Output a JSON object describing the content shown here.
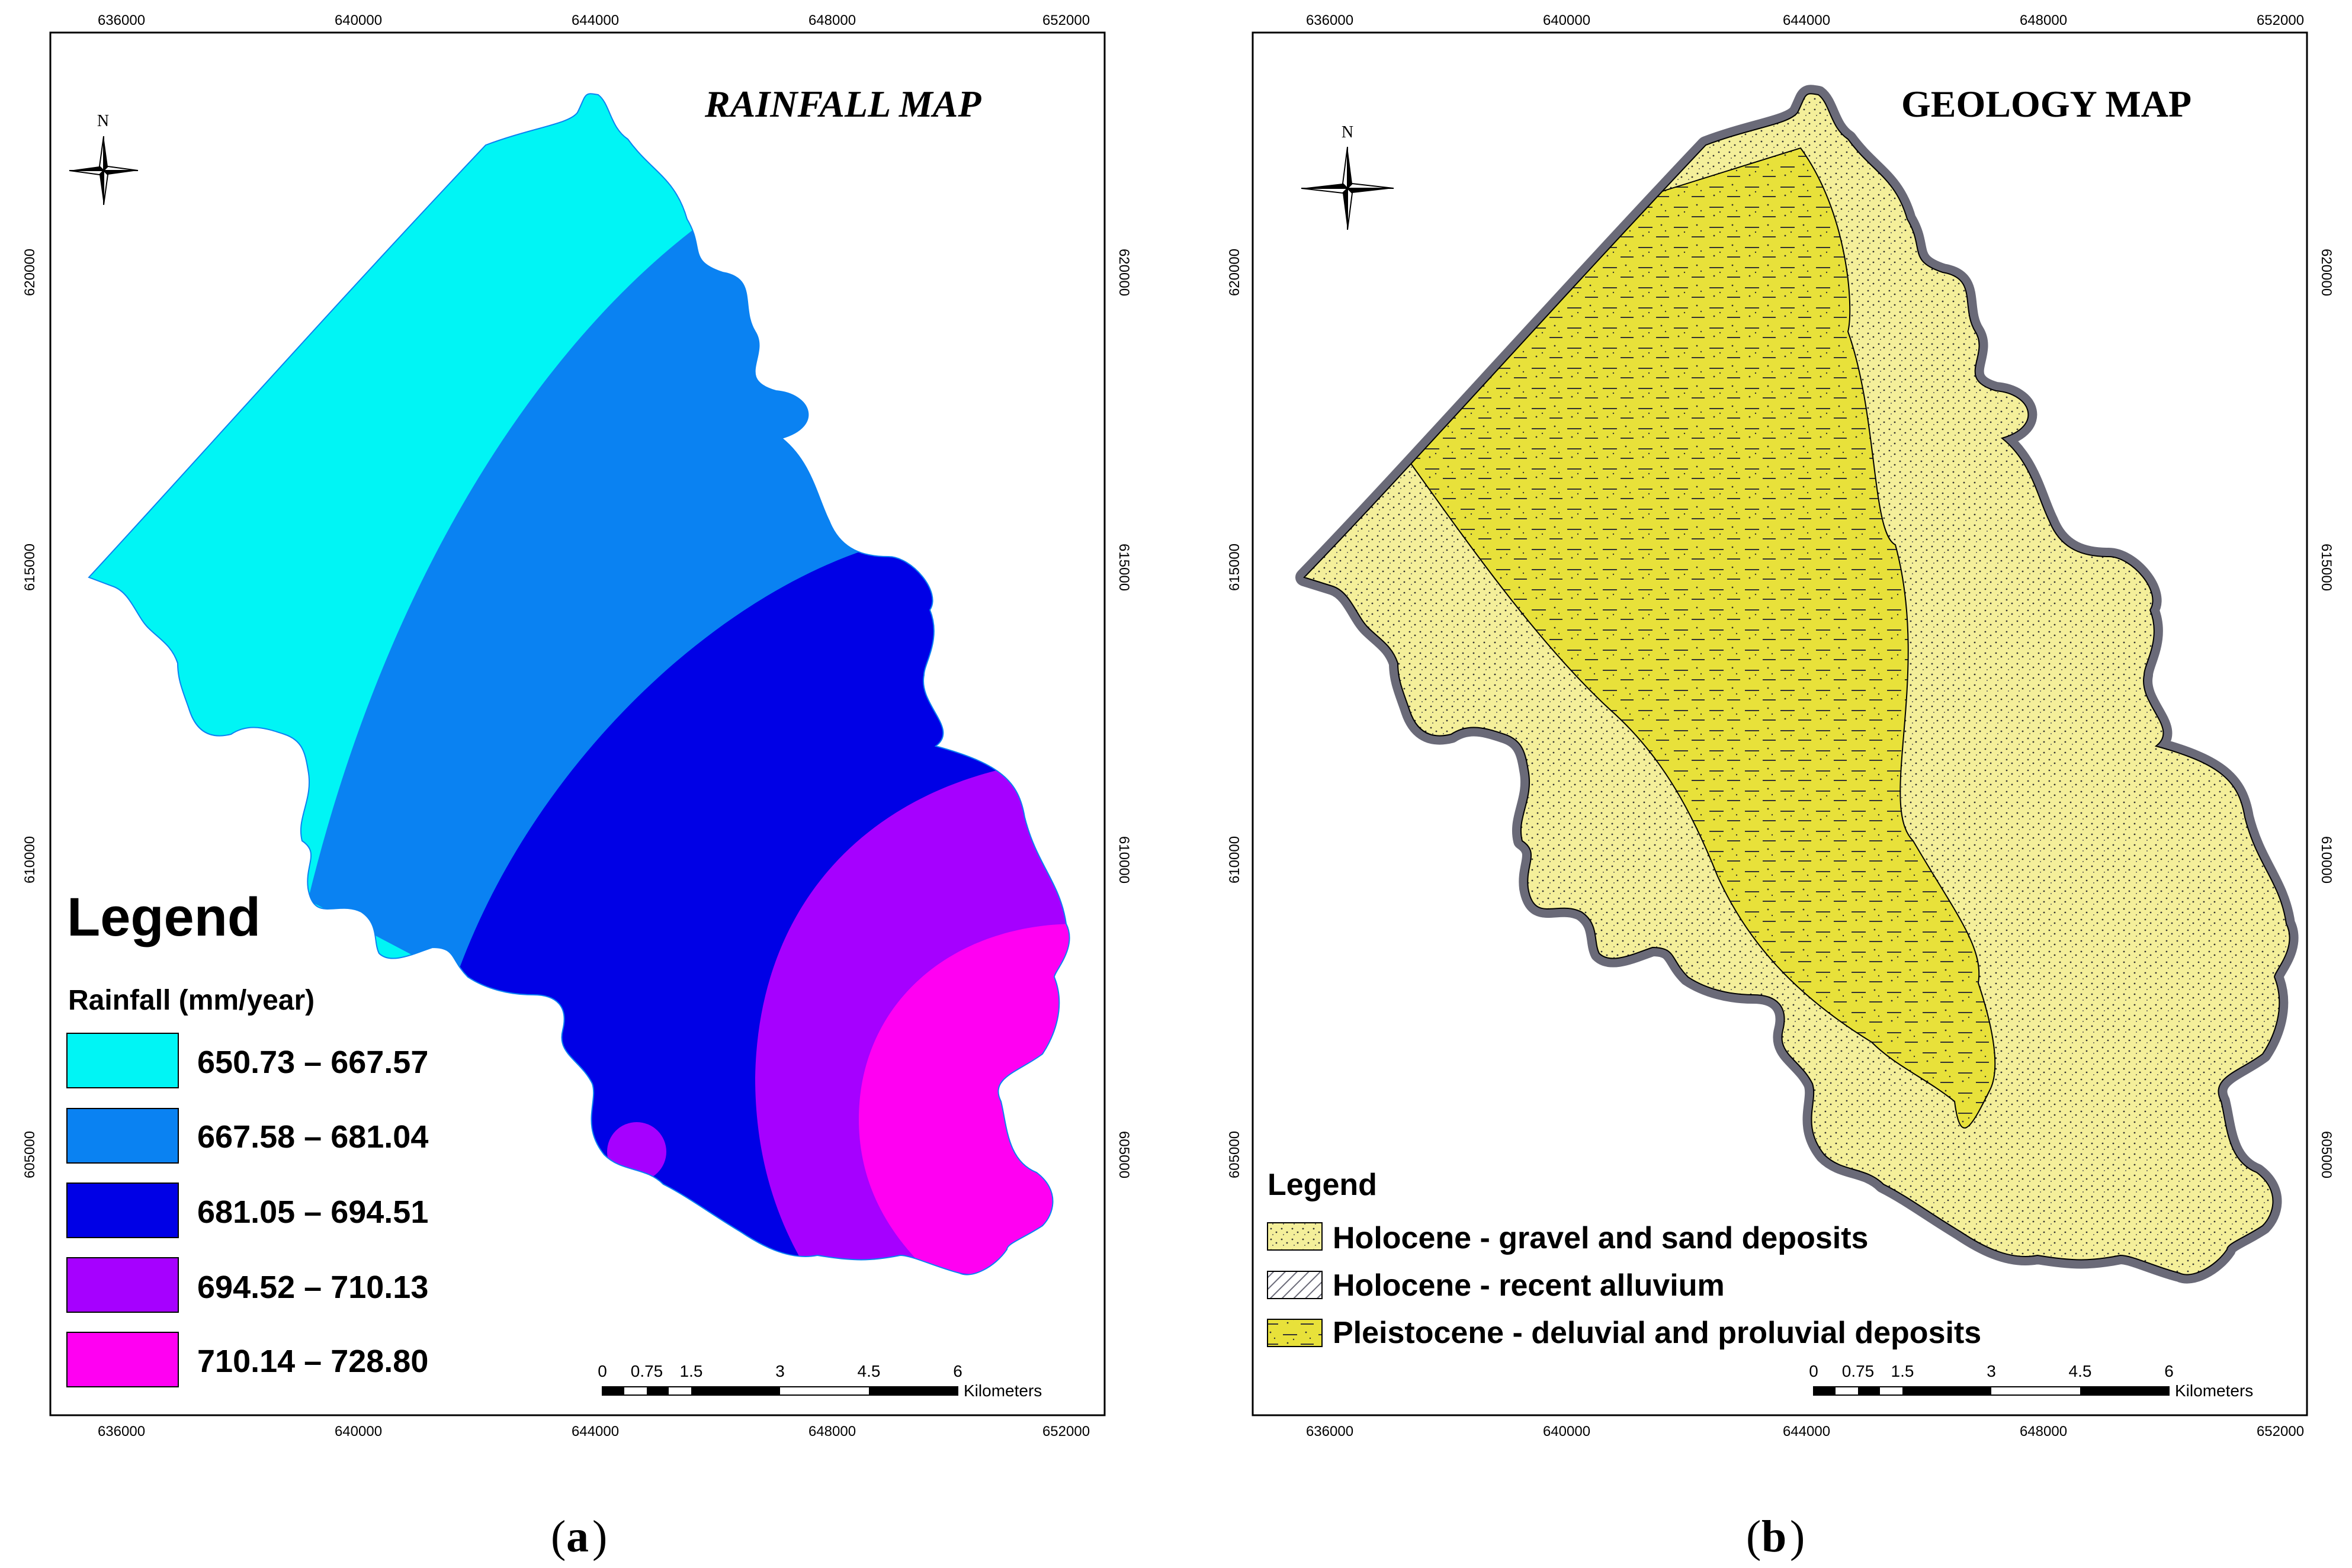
{
  "figure": {
    "panels": [
      {
        "id": "a",
        "title": "RAINFALL MAP",
        "caption_letter": "a",
        "x_ticks": [
          "636000",
          "640000",
          "644000",
          "648000",
          "652000"
        ],
        "y_ticks": [
          "620000",
          "615000",
          "610000",
          "605000"
        ],
        "north_label": "N",
        "legend": {
          "heading": "Legend",
          "subheading": "Rainfall (mm/year)",
          "items": [
            {
              "label": "650.73 – 667.57",
              "color": "#00f5f5"
            },
            {
              "label": "667.58 – 681.04",
              "color": "#0a82f2"
            },
            {
              "label": "681.05 – 694.51",
              "color": "#0000e6"
            },
            {
              "label": "694.52 – 710.13",
              "color": "#a600ff"
            },
            {
              "label": "710.14 – 728.80",
              "color": "#ff00f2"
            }
          ]
        },
        "scale_bar": {
          "labels": [
            "0",
            "0.75",
            "1.5",
            "3",
            "4.5",
            "6"
          ],
          "unit": "Kilometers"
        }
      },
      {
        "id": "b",
        "title": "GEOLOGY  MAP",
        "caption_letter": "b",
        "x_ticks": [
          "636000",
          "640000",
          "644000",
          "648000",
          "652000"
        ],
        "y_ticks": [
          "620000",
          "615000",
          "610000",
          "605000"
        ],
        "north_label": "N",
        "legend": {
          "heading": "Legend",
          "items": [
            {
              "label": "Holocene - gravel and sand  deposits",
              "color": "#f4ef9a",
              "pattern": "dots"
            },
            {
              "label": "Holocene - recent alluvium",
              "color": "#ffffff",
              "pattern": "hatch"
            },
            {
              "label": "Pleistocene - deluvial and proluvial deposits",
              "color": "#e8e13a",
              "pattern": "dash-dots"
            }
          ]
        },
        "scale_bar": {
          "labels": [
            "0",
            "0.75",
            "1.5",
            "3",
            "4.5",
            "6"
          ],
          "unit": "Kilometers"
        }
      }
    ]
  }
}
